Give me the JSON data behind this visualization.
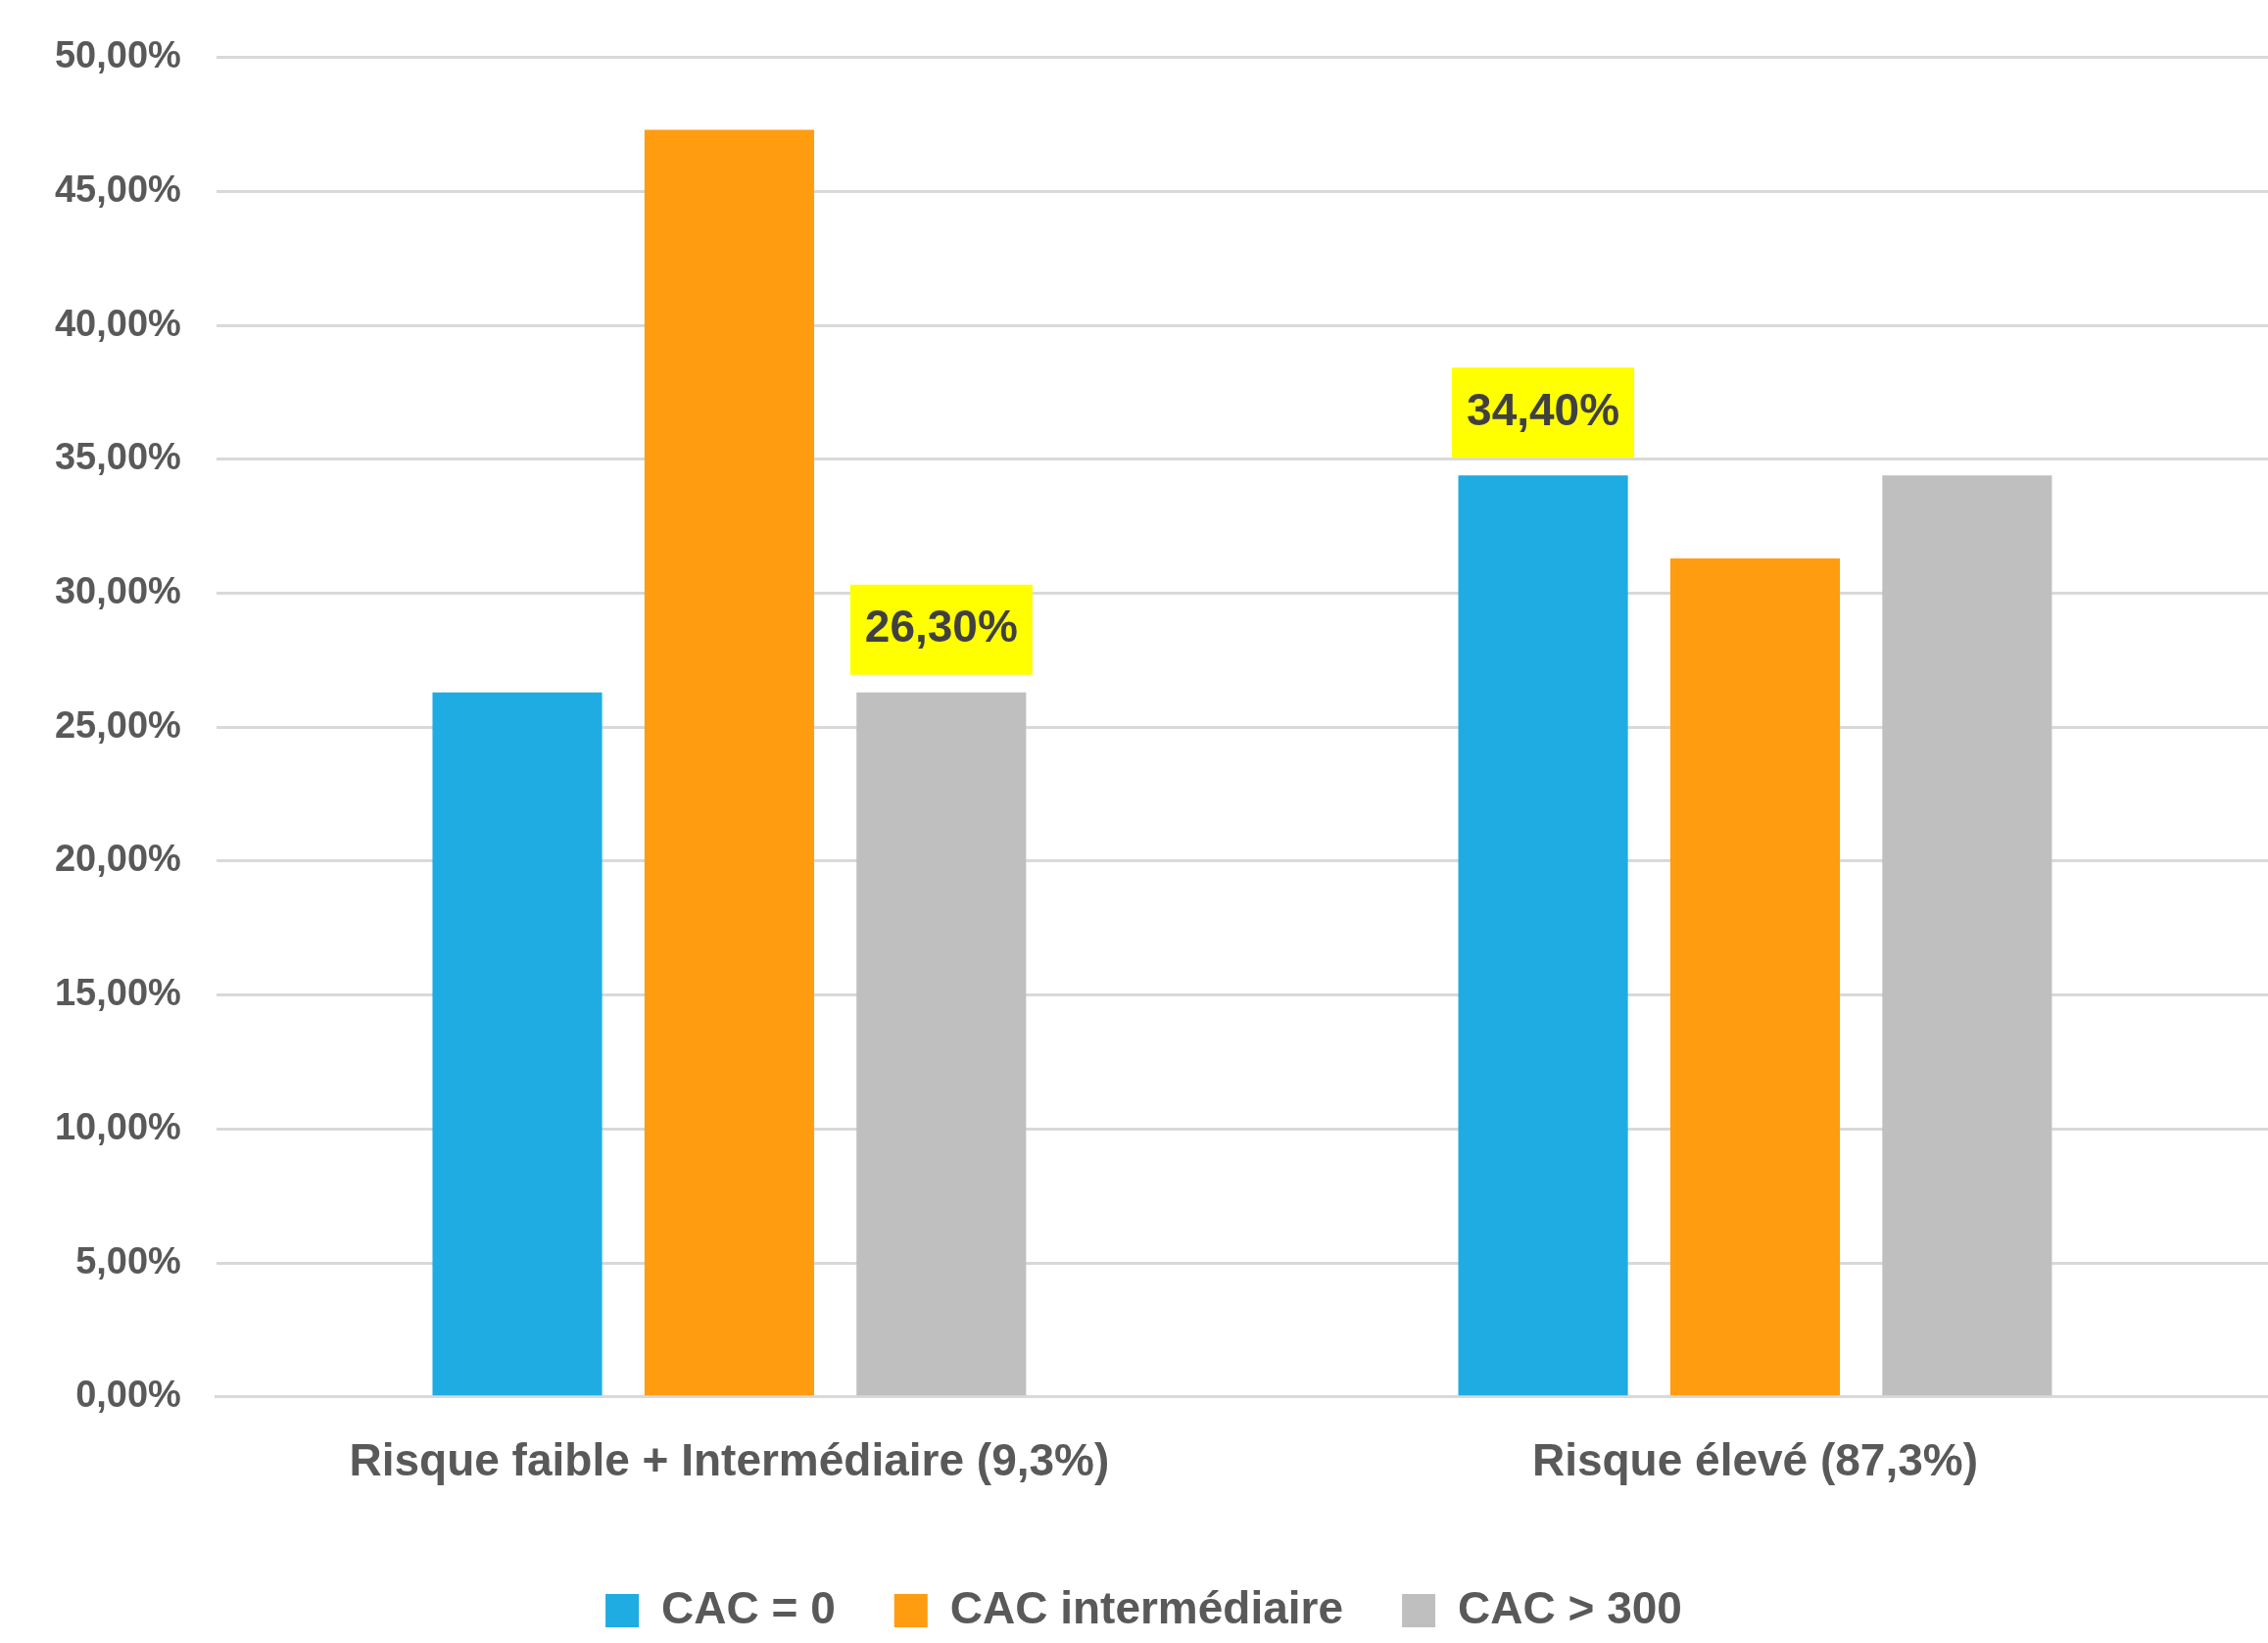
{
  "chart_data": {
    "type": "bar",
    "categories": [
      "Risque faible + Intermédiaire (9,3%)",
      "Risque élevé (87,3%)"
    ],
    "series": [
      {
        "name": "CAC = 0",
        "color": "#1eace2",
        "values": [
          26.3,
          34.4
        ],
        "value_labels": [
          null,
          "34,40%"
        ]
      },
      {
        "name": "CAC intermédiaire",
        "color": "#ff9c10",
        "values": [
          47.3,
          31.3
        ]
      },
      {
        "name": "CAC > 300",
        "color": "#bfbfbf",
        "values": [
          26.3,
          34.4
        ],
        "value_labels": [
          "26,30%",
          null
        ]
      }
    ],
    "ylim": [
      0,
      50
    ],
    "yticks": [
      {
        "value": 0,
        "label": "0,00%"
      },
      {
        "value": 5,
        "label": "5,00%"
      },
      {
        "value": 10,
        "label": "10,00%"
      },
      {
        "value": 15,
        "label": "15,00%"
      },
      {
        "value": 20,
        "label": "20,00%"
      },
      {
        "value": 25,
        "label": "25,00%"
      },
      {
        "value": 30,
        "label": "30,00%"
      },
      {
        "value": 35,
        "label": "35,00%"
      },
      {
        "value": 40,
        "label": "40,00%"
      },
      {
        "value": 45,
        "label": "45,00%"
      },
      {
        "value": 50,
        "label": "50,00%"
      }
    ],
    "grid": "y",
    "legend": "bottom"
  }
}
